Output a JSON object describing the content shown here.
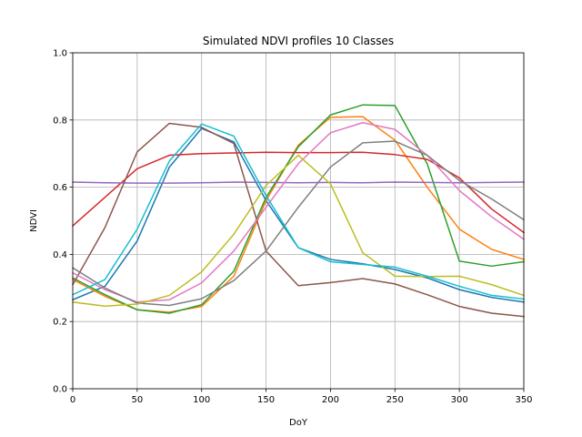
{
  "chart_data": {
    "type": "line",
    "title": "Simulated NDVI profiles 10 Classes",
    "xlabel": "DoY",
    "ylabel": "NDVI",
    "xlim": [
      0,
      350
    ],
    "ylim": [
      0.0,
      1.0
    ],
    "xticks": [
      "0",
      "50",
      "100",
      "150",
      "200",
      "250",
      "300",
      "350"
    ],
    "yticks": [
      "0.0",
      "0.2",
      "0.4",
      "0.6",
      "0.8",
      "1.0"
    ],
    "grid": true,
    "legend": "none",
    "x": [
      0,
      25,
      50,
      75,
      100,
      125,
      150,
      175,
      200,
      225,
      250,
      275,
      300,
      325,
      350
    ],
    "series": [
      {
        "color": "#1f77b4",
        "values": [
          0.265,
          0.305,
          0.44,
          0.66,
          0.775,
          0.735,
          0.56,
          0.42,
          0.385,
          0.372,
          0.355,
          0.33,
          0.295,
          0.272,
          0.258
        ]
      },
      {
        "color": "#ff7f0e",
        "values": [
          0.325,
          0.275,
          0.235,
          0.228,
          0.245,
          0.335,
          0.56,
          0.725,
          0.808,
          0.81,
          0.74,
          0.6,
          0.475,
          0.415,
          0.385
        ]
      },
      {
        "color": "#2ca02c",
        "values": [
          0.33,
          0.28,
          0.235,
          0.225,
          0.25,
          0.35,
          0.57,
          0.72,
          0.815,
          0.845,
          0.843,
          0.67,
          0.38,
          0.365,
          0.378
        ]
      },
      {
        "color": "#d62728",
        "values": [
          0.485,
          0.57,
          0.655,
          0.695,
          0.7,
          0.702,
          0.704,
          0.703,
          0.703,
          0.704,
          0.697,
          0.683,
          0.628,
          0.535,
          0.465
        ]
      },
      {
        "color": "#9467bd",
        "values": [
          0.615,
          0.613,
          0.612,
          0.612,
          0.613,
          0.615,
          0.614,
          0.613,
          0.614,
          0.613,
          0.615,
          0.614,
          0.613,
          0.614,
          0.615
        ]
      },
      {
        "color": "#8c564b",
        "values": [
          0.31,
          0.48,
          0.705,
          0.79,
          0.778,
          0.73,
          0.41,
          0.307,
          0.316,
          0.328,
          0.312,
          0.28,
          0.245,
          0.225,
          0.215
        ]
      },
      {
        "color": "#e377c2",
        "values": [
          0.345,
          0.295,
          0.258,
          0.265,
          0.315,
          0.41,
          0.54,
          0.67,
          0.762,
          0.792,
          0.772,
          0.695,
          0.59,
          0.512,
          0.445
        ]
      },
      {
        "color": "#7f7f7f",
        "values": [
          0.36,
          0.3,
          0.255,
          0.248,
          0.268,
          0.322,
          0.41,
          0.54,
          0.66,
          0.732,
          0.737,
          0.695,
          0.62,
          0.565,
          0.503
        ]
      },
      {
        "color": "#bcbd22",
        "values": [
          0.258,
          0.246,
          0.252,
          0.278,
          0.348,
          0.46,
          0.605,
          0.695,
          0.61,
          0.405,
          0.335,
          0.334,
          0.335,
          0.31,
          0.278
        ]
      },
      {
        "color": "#17becf",
        "values": [
          0.28,
          0.325,
          0.475,
          0.678,
          0.788,
          0.752,
          0.575,
          0.42,
          0.378,
          0.37,
          0.362,
          0.335,
          0.305,
          0.278,
          0.267
        ]
      }
    ]
  }
}
